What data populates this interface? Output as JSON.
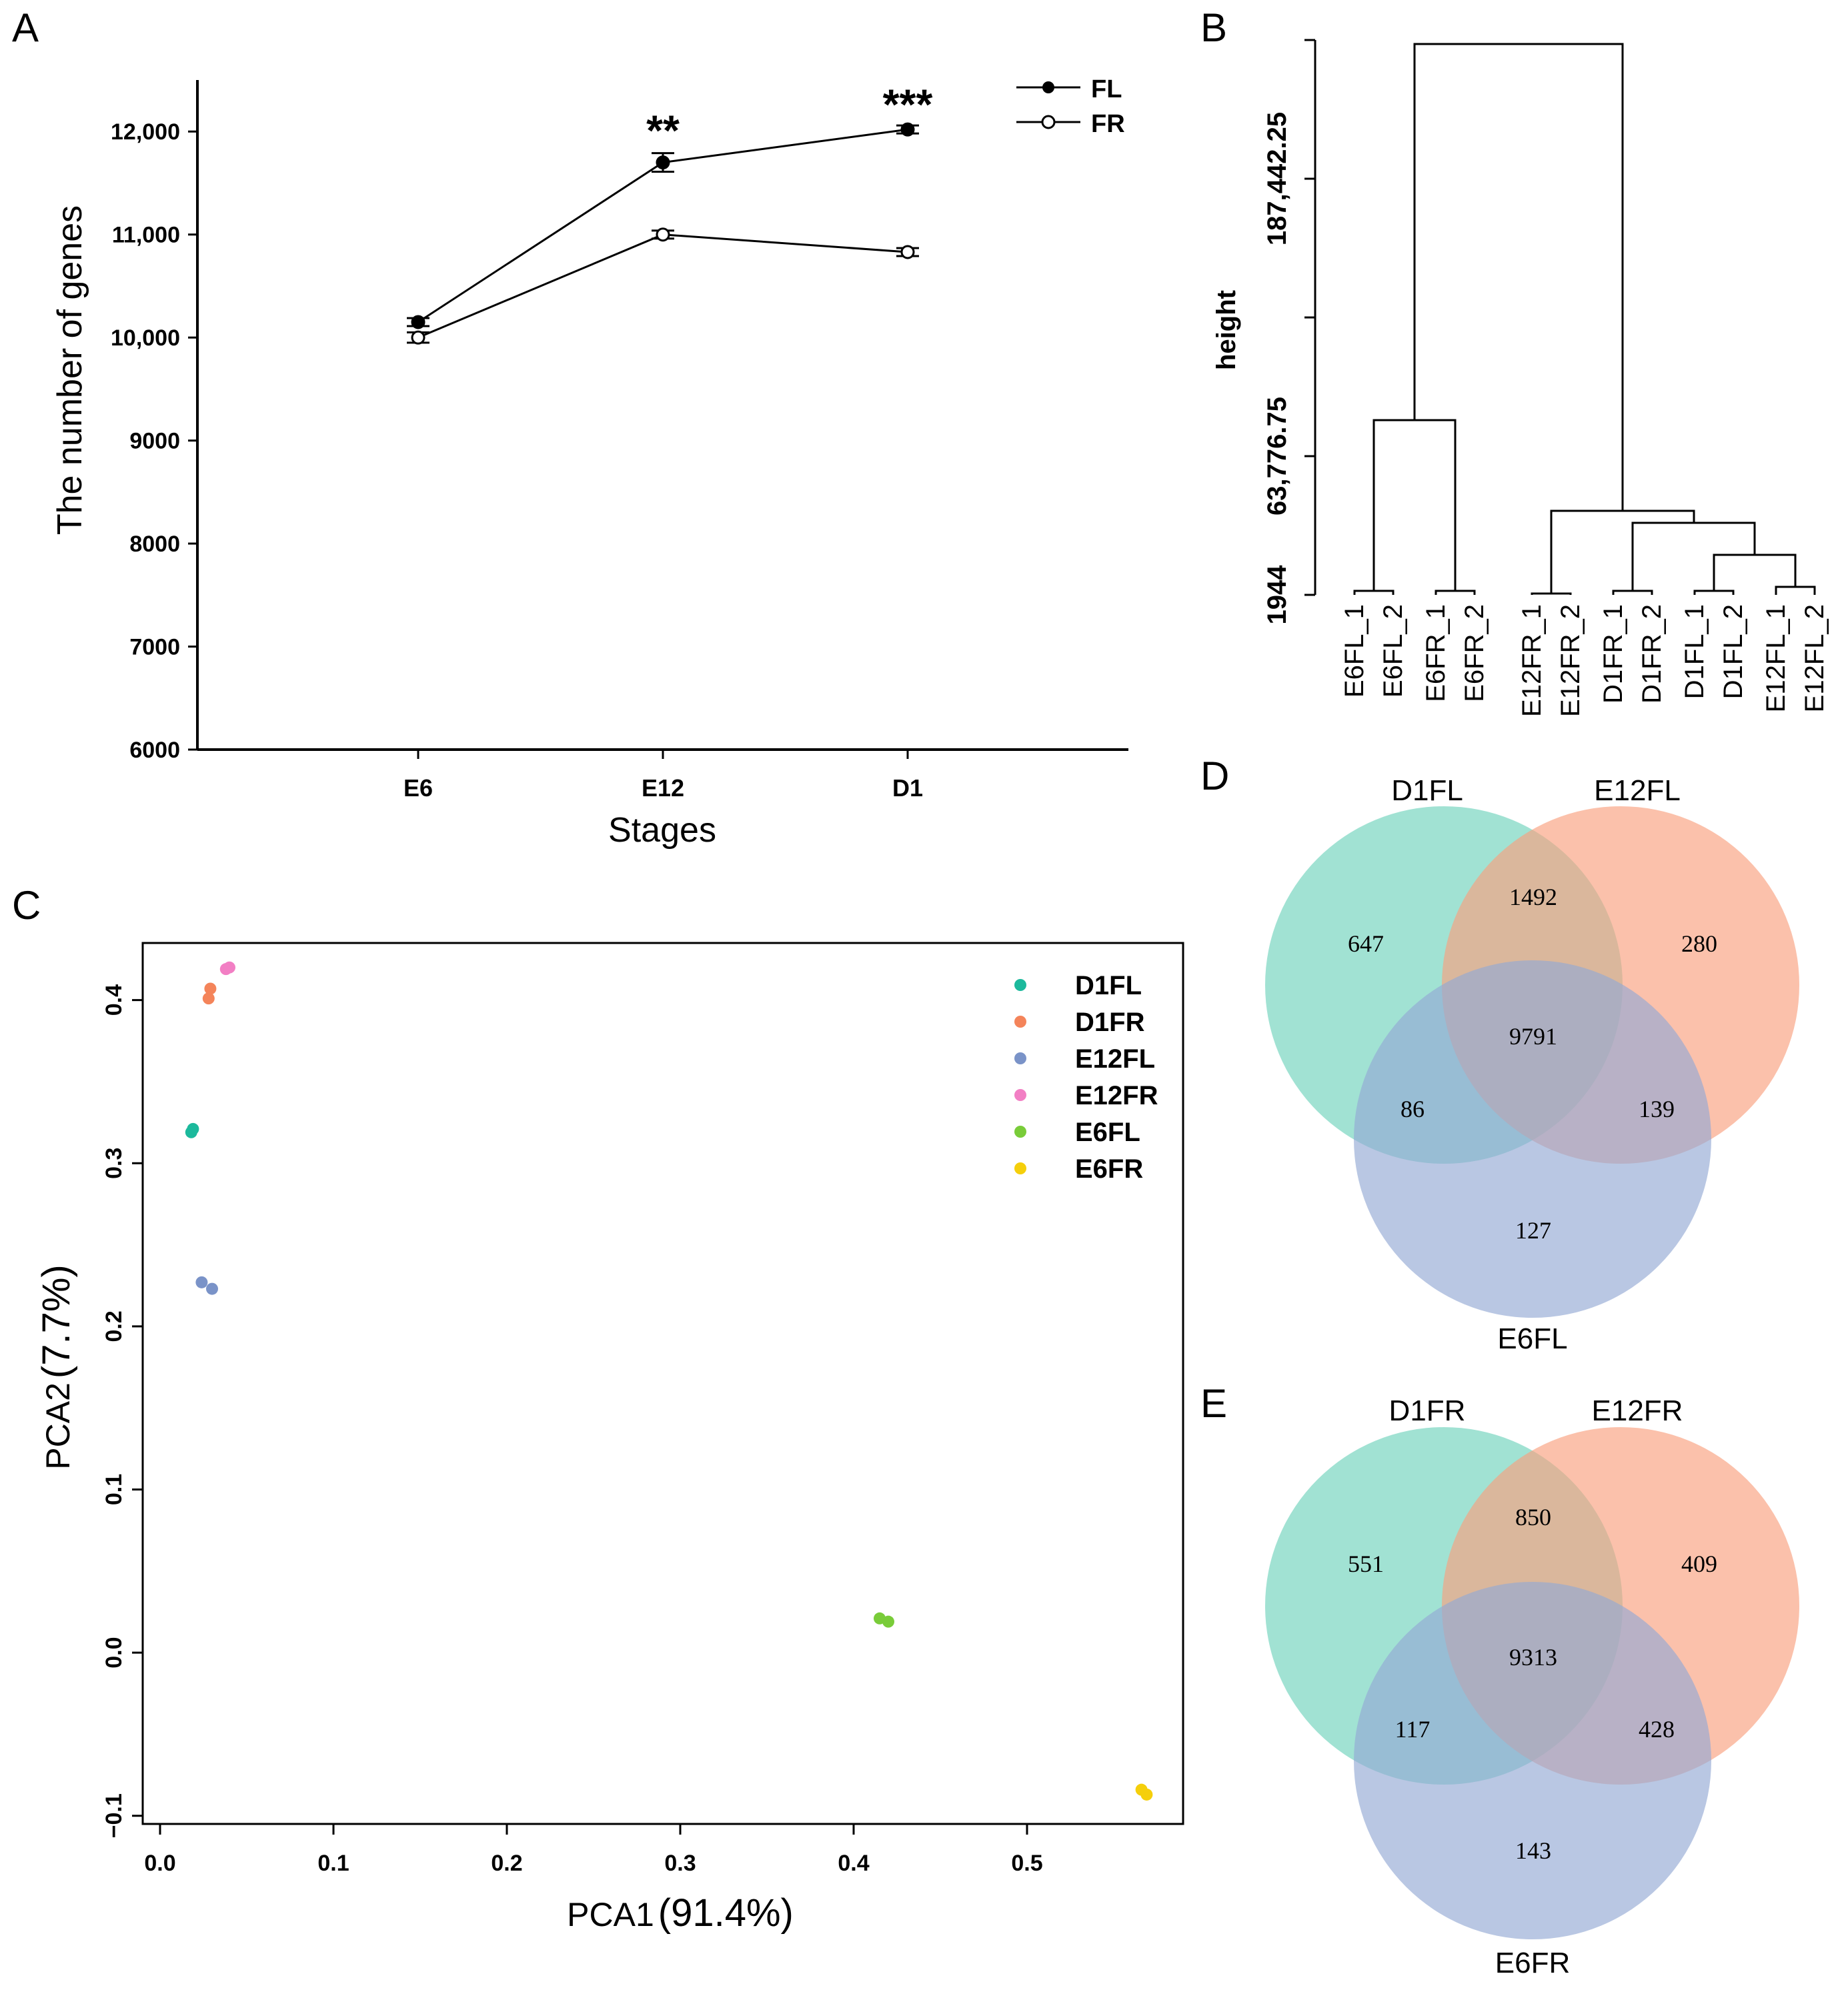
{
  "panels": {
    "A": "A",
    "B": "B",
    "C": "C",
    "D": "D",
    "E": "E"
  },
  "chart_data": [
    {
      "panel": "A",
      "type": "line",
      "title": "",
      "xlabel": "Stages",
      "ylabel": "The number of genes",
      "categories": [
        "E6",
        "E12",
        "D1"
      ],
      "ylim": [
        6000,
        12500
      ],
      "y_ticks": [
        6000,
        7000,
        8000,
        9000,
        10000,
        11000,
        12000
      ],
      "y_tick_labels": [
        "6000",
        "7000",
        "8000",
        "9000",
        "10,000",
        "11,000",
        "12,000"
      ],
      "series": [
        {
          "name": "FL",
          "marker": "filled",
          "values": [
            10150,
            11700,
            12020
          ],
          "errors": [
            30,
            90,
            25
          ]
        },
        {
          "name": "FR",
          "marker": "open",
          "values": [
            10000,
            11000,
            10830
          ],
          "errors": [
            50,
            25,
            30
          ]
        }
      ],
      "significance": [
        "",
        "**",
        "***"
      ],
      "legend_position": "top-right"
    },
    {
      "panel": "B",
      "type": "dendrogram",
      "ylabel": "height",
      "y_tick_labels": [
        "1944",
        "63,776.75",
        "187,442.25"
      ],
      "leaves": [
        "E6FL_1",
        "E6FL_2",
        "E6FR_1",
        "E6FR_2",
        "E12FR_1",
        "E12FR_2",
        "D1FR_1",
        "D1FR_2",
        "D1FL_1",
        "D1FL_2",
        "E12FL_1",
        "E12FL_2"
      ]
    },
    {
      "panel": "C",
      "type": "scatter",
      "xlabel_prefix": "PCA1",
      "xlabel_pct": "(91.4%)",
      "ylabel_prefix": "PCA2",
      "ylabel_pct": "(7.7%)",
      "xlim": [
        -0.01,
        0.59
      ],
      "ylim": [
        -0.105,
        0.435
      ],
      "x_ticks": [
        0.0,
        0.1,
        0.2,
        0.3,
        0.4,
        0.5
      ],
      "x_tick_labels": [
        "0.0",
        "0.1",
        "0.2",
        "0.3",
        "0.4",
        "0.5"
      ],
      "y_ticks": [
        -0.1,
        0.0,
        0.1,
        0.2,
        0.3,
        0.4
      ],
      "y_tick_labels": [
        "−0.1",
        "0.0",
        "0.1",
        "0.2",
        "0.3",
        "0.4"
      ],
      "legend_position": "top-right",
      "series": [
        {
          "name": "D1FL",
          "color": "#1cb99c",
          "points": [
            [
              0.018,
              0.319
            ],
            [
              0.019,
              0.321
            ]
          ]
        },
        {
          "name": "D1FR",
          "color": "#f4845a",
          "points": [
            [
              0.028,
              0.401
            ],
            [
              0.029,
              0.407
            ]
          ]
        },
        {
          "name": "E12FL",
          "color": "#7a93c8",
          "points": [
            [
              0.024,
              0.227
            ],
            [
              0.03,
              0.223
            ]
          ]
        },
        {
          "name": "E12FR",
          "color": "#f27fc4",
          "points": [
            [
              0.038,
              0.419
            ],
            [
              0.04,
              0.42
            ]
          ]
        },
        {
          "name": "E6FL",
          "color": "#79cc39",
          "points": [
            [
              0.415,
              0.021
            ],
            [
              0.42,
              0.019
            ]
          ]
        },
        {
          "name": "E6FR",
          "color": "#f5cf0b",
          "points": [
            [
              0.566,
              -0.084
            ],
            [
              0.569,
              -0.087
            ]
          ]
        }
      ]
    },
    {
      "panel": "D",
      "type": "venn",
      "sets": [
        "D1FL",
        "E12FL",
        "E6FL"
      ],
      "colors": [
        "#6ed2bb",
        "#f9a07e",
        "#93a9d4"
      ],
      "regions": {
        "only_a": 647,
        "only_b": 280,
        "only_c": 127,
        "ab": 1492,
        "ac": 86,
        "bc": 139,
        "abc": 9791
      }
    },
    {
      "panel": "E",
      "type": "venn",
      "sets": [
        "D1FR",
        "E12FR",
        "E6FR"
      ],
      "colors": [
        "#6ed2bb",
        "#f9a07e",
        "#93a9d4"
      ],
      "regions": {
        "only_a": 551,
        "only_b": 409,
        "only_c": 143,
        "ab": 850,
        "ac": 117,
        "bc": 428,
        "abc": 9313
      }
    }
  ]
}
